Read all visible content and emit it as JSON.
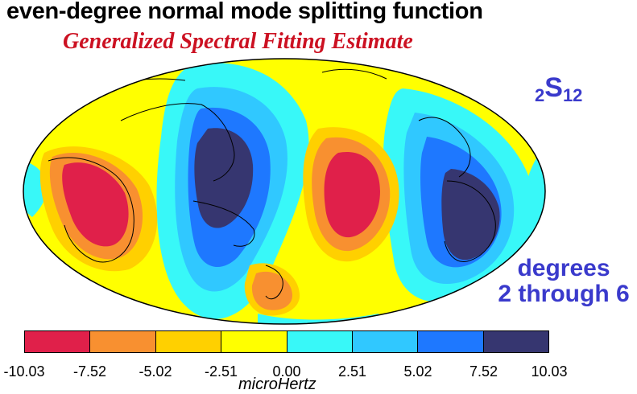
{
  "title": "even-degree normal mode splitting function",
  "subtitle": "Generalized Spectral Fitting Estimate",
  "mode_label": {
    "prefix": "2",
    "main": "S",
    "suffix": "12"
  },
  "degree_note": {
    "line1": "degrees",
    "line2": "2 through 6"
  },
  "colorbar": {
    "colors": [
      "#e0204a",
      "#f89030",
      "#ffd000",
      "#ffff00",
      "#38f8f8",
      "#30c8ff",
      "#1e78ff",
      "#363670"
    ],
    "ticks": [
      "-10.03",
      "-7.52",
      "-5.02",
      "-2.51",
      "0.00",
      "2.51",
      "5.02",
      "7.52",
      "10.03"
    ],
    "unit": "microHertz"
  },
  "map": {
    "projection": "Mollweide (Pacific-centered)",
    "background_color": "#ffff00",
    "coastline_color": "#000000"
  }
}
